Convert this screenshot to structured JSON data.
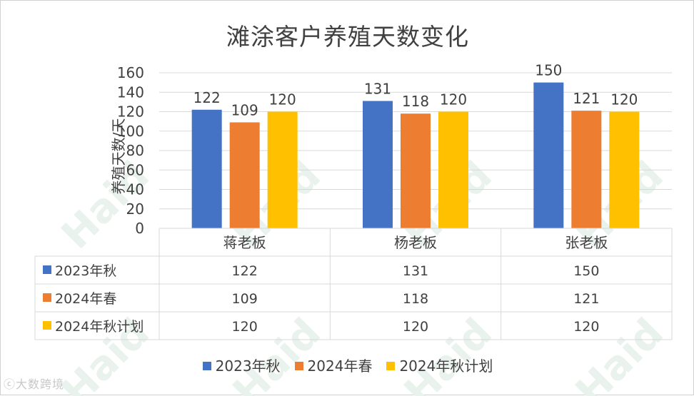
{
  "chart_data": {
    "type": "bar",
    "title": "滩涂客户养殖天数变化",
    "ylabel": "养殖天数/天",
    "xlabel": "",
    "ylim": [
      0,
      160
    ],
    "yticks": [
      0,
      20,
      40,
      60,
      80,
      100,
      120,
      140,
      160
    ],
    "categories": [
      "蒋老板",
      "杨老板",
      "张老板"
    ],
    "series": [
      {
        "name": "2023年秋",
        "values": [
          122,
          131,
          150
        ],
        "color": "#4472c4"
      },
      {
        "name": "2024年春",
        "values": [
          109,
          118,
          121
        ],
        "color": "#ed7d31"
      },
      {
        "name": "2024年秋计划",
        "values": [
          120,
          120,
          120
        ],
        "color": "#ffc000"
      }
    ],
    "grid": true,
    "legend": "bottom",
    "data_table": true
  },
  "watermark": {
    "text": "Haid",
    "logo_text": "大数跨境",
    "logo_prefix": "ⓒ"
  }
}
